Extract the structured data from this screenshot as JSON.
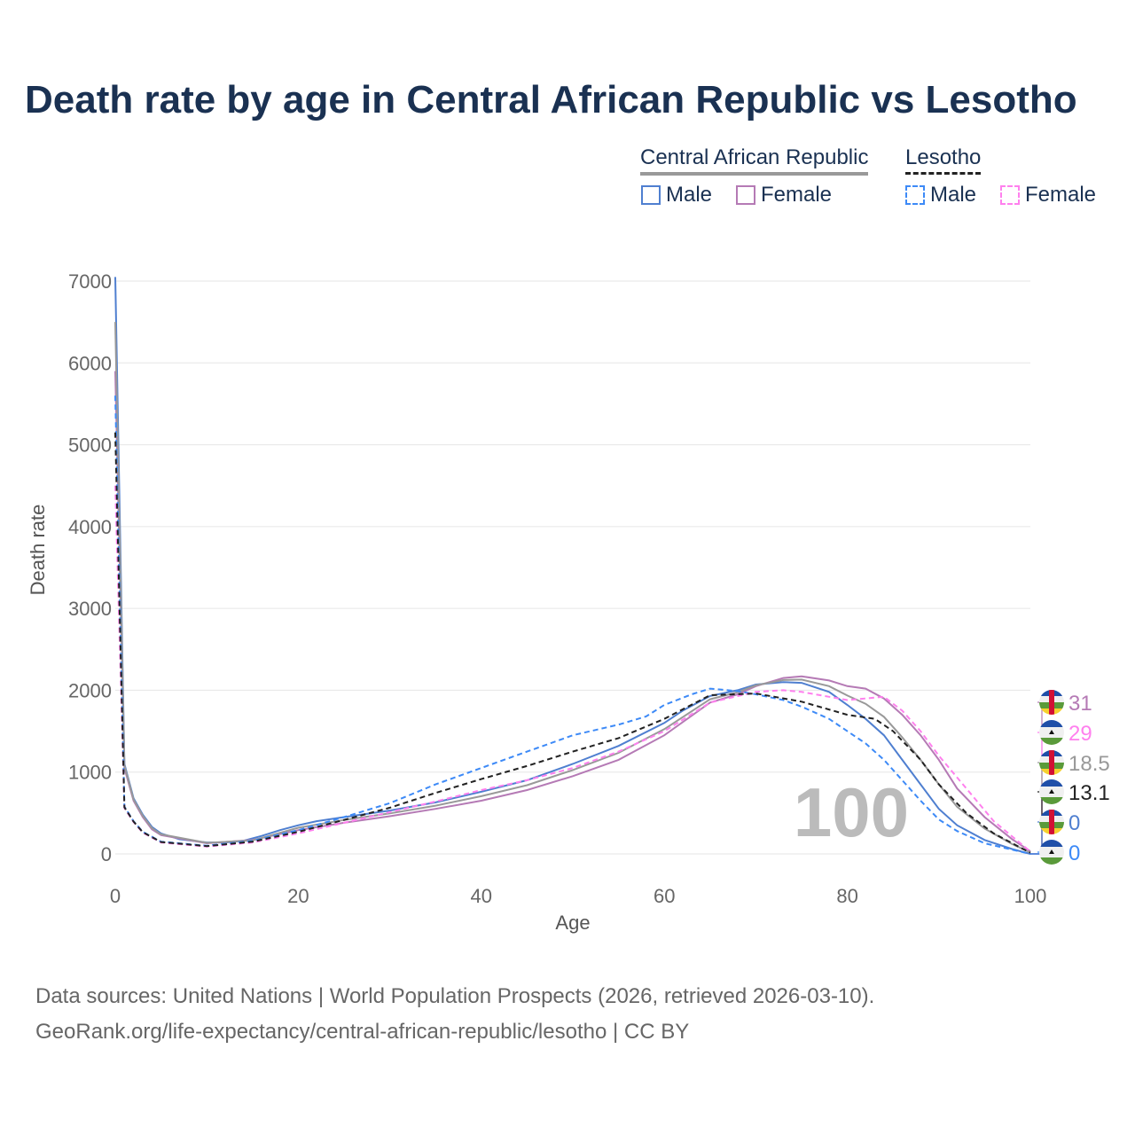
{
  "title": "Death rate by age in Central African Republic vs Lesotho",
  "legend": {
    "group1": "Central African Republic",
    "group2": "Lesotho",
    "male": "Male",
    "female": "Female"
  },
  "footer": {
    "line1": "Data sources: United Nations | World Population Prospects (2026, retrieved 2026-03-10).",
    "line2": "GeoRank.org/life-expectancy/central-african-republic/lesotho | CC BY"
  },
  "chart_data": {
    "type": "line",
    "xlabel": "Age",
    "ylabel": "Death rate",
    "xlim": [
      0,
      100
    ],
    "ylim": [
      0,
      7000
    ],
    "xticks": [
      0,
      20,
      40,
      60,
      80,
      100
    ],
    "yticks": [
      0,
      1000,
      2000,
      3000,
      4000,
      5000,
      6000,
      7000
    ],
    "watermark": "100",
    "series": [
      {
        "name": "Central African Republic Male",
        "color": "#4f7fd0",
        "dash": false,
        "end_label": "0",
        "flag": "car",
        "x": [
          0,
          1,
          2,
          3,
          4,
          5,
          7,
          10,
          12,
          14,
          16,
          18,
          20,
          22,
          25,
          30,
          35,
          40,
          45,
          50,
          55,
          60,
          62,
          65,
          68,
          70,
          73,
          75,
          78,
          80,
          82,
          84,
          86,
          88,
          90,
          92,
          95,
          98,
          100
        ],
        "y": [
          7050,
          1100,
          680,
          480,
          330,
          250,
          180,
          140,
          140,
          160,
          220,
          290,
          350,
          400,
          450,
          530,
          630,
          760,
          900,
          1100,
          1320,
          1600,
          1750,
          1930,
          2000,
          2070,
          2100,
          2090,
          1980,
          1820,
          1650,
          1450,
          1150,
          850,
          550,
          350,
          170,
          60,
          0
        ]
      },
      {
        "name": "Central African Republic Female",
        "color": "#b57ab5",
        "dash": false,
        "end_label": "31",
        "flag": "car",
        "x": [
          0,
          1,
          2,
          3,
          4,
          5,
          10,
          15,
          20,
          25,
          30,
          35,
          40,
          45,
          50,
          55,
          60,
          65,
          68,
          70,
          73,
          75,
          78,
          80,
          82,
          84,
          86,
          88,
          90,
          92,
          95,
          98,
          100
        ],
        "y": [
          5900,
          1050,
          650,
          450,
          300,
          230,
          130,
          170,
          290,
          380,
          460,
          550,
          650,
          780,
          950,
          1150,
          1450,
          1850,
          1950,
          2050,
          2150,
          2170,
          2120,
          2050,
          2020,
          1900,
          1700,
          1450,
          1150,
          800,
          450,
          180,
          31
        ]
      },
      {
        "name": "Central African Republic Total",
        "color": "#999999",
        "dash": false,
        "end_label": "18.5",
        "flag": "car",
        "x": [
          0,
          1,
          2,
          3,
          4,
          5,
          10,
          15,
          20,
          25,
          30,
          35,
          40,
          45,
          50,
          55,
          60,
          65,
          68,
          70,
          73,
          75,
          78,
          80,
          82,
          84,
          86,
          88,
          90,
          92,
          95,
          98,
          100
        ],
        "y": [
          6500,
          1080,
          665,
          465,
          315,
          240,
          135,
          165,
          320,
          415,
          495,
          590,
          705,
          840,
          1025,
          1235,
          1525,
          1890,
          1975,
          2060,
          2125,
          2130,
          2050,
          1935,
          1835,
          1675,
          1425,
          1150,
          850,
          575,
          310,
          120,
          18.5
        ]
      },
      {
        "name": "Lesotho Male",
        "color": "#3d8af7",
        "dash": true,
        "end_label": "0",
        "flag": "lesotho",
        "x": [
          0,
          1,
          2,
          3,
          5,
          10,
          15,
          20,
          25,
          30,
          35,
          40,
          45,
          50,
          55,
          58,
          60,
          63,
          65,
          68,
          70,
          73,
          75,
          78,
          80,
          82,
          84,
          86,
          88,
          90,
          92,
          95,
          100
        ],
        "y": [
          5600,
          580,
          400,
          270,
          150,
          100,
          160,
          290,
          450,
          620,
          850,
          1050,
          1250,
          1450,
          1580,
          1680,
          1820,
          1950,
          2020,
          1990,
          1950,
          1880,
          1800,
          1650,
          1500,
          1350,
          1150,
          900,
          650,
          420,
          280,
          130,
          0
        ]
      },
      {
        "name": "Lesotho Female",
        "color": "#ff80ee",
        "dash": true,
        "end_label": "29",
        "flag": "lesotho",
        "x": [
          0,
          1,
          2,
          3,
          5,
          10,
          15,
          20,
          25,
          30,
          35,
          40,
          45,
          50,
          55,
          60,
          65,
          70,
          73,
          75,
          78,
          80,
          84,
          86,
          88,
          90,
          93,
          96,
          100
        ],
        "y": [
          4500,
          560,
          390,
          260,
          140,
          90,
          140,
          250,
          380,
          510,
          640,
          780,
          900,
          1050,
          1250,
          1500,
          1850,
          1980,
          2000,
          1980,
          1920,
          1880,
          1920,
          1750,
          1500,
          1200,
          800,
          400,
          29
        ]
      },
      {
        "name": "Lesotho Total",
        "color": "#222222",
        "dash": true,
        "end_label": "13.1",
        "flag": "lesotho",
        "x": [
          0,
          1,
          2,
          3,
          5,
          10,
          15,
          20,
          25,
          30,
          35,
          40,
          45,
          50,
          55,
          60,
          65,
          70,
          75,
          80,
          83,
          85,
          88,
          90,
          93,
          96,
          100
        ],
        "y": [
          5150,
          570,
          395,
          265,
          145,
          95,
          150,
          270,
          415,
          565,
          745,
          915,
          1075,
          1250,
          1415,
          1650,
          1940,
          1960,
          1860,
          1700,
          1650,
          1500,
          1150,
          850,
          500,
          250,
          13.1
        ]
      }
    ]
  }
}
